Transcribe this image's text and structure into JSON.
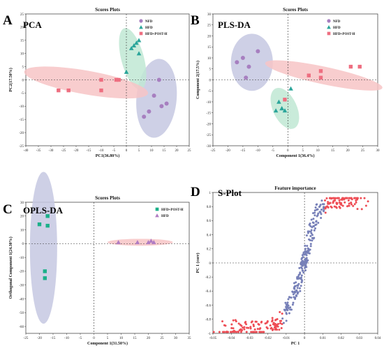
{
  "chart_data": [
    {
      "id": "A",
      "type": "scatter",
      "panel_label": "A",
      "method_label": "PCA",
      "title": "Scores Plots",
      "xlabel": "PC1(36.80%)",
      "ylabel": "PC2(17.50%)",
      "xlim": [
        -40,
        25
      ],
      "ylim": [
        -25,
        25
      ],
      "xticks": [
        -40,
        -35,
        -30,
        -25,
        -20,
        -15,
        -10,
        -5,
        0,
        5,
        10,
        15,
        20,
        25
      ],
      "yticks": [
        -25,
        -20,
        -15,
        -10,
        -5,
        0,
        5,
        10,
        15,
        20,
        25
      ],
      "legend": "top-right",
      "series": [
        {
          "name": "NFD",
          "marker": "circle",
          "color": "#a77fc0",
          "ellipse": "#c5c8e2",
          "x": [
            11,
            13,
            14,
            16,
            7,
            9
          ],
          "y": [
            -6,
            0,
            -10,
            -9,
            -14,
            -12
          ]
        },
        {
          "name": "HFD",
          "marker": "triangle",
          "color": "#2aa59a",
          "ellipse": "#bfe8d4",
          "x": [
            2,
            3,
            4,
            5,
            5,
            0
          ],
          "y": [
            12,
            13,
            14,
            15,
            10,
            3
          ]
        },
        {
          "name": "HFD+POST-H",
          "marker": "square",
          "color": "#ee6e80",
          "ellipse": "#f7c4c6",
          "x": [
            -27,
            -23,
            -10,
            -10,
            -4,
            -3
          ],
          "y": [
            -4,
            -4,
            0,
            -4,
            0,
            0
          ]
        }
      ],
      "ellipses": [
        {
          "series": "NFD",
          "cx": 12,
          "cy": -7,
          "rx": 8,
          "ry": 15,
          "angle": -5
        },
        {
          "series": "HFD",
          "cx": 2.5,
          "cy": 8,
          "rx": 4.5,
          "ry": 12,
          "angle": 15
        },
        {
          "series": "HFD+POST-H",
          "cx": -16,
          "cy": -1,
          "rx": 25,
          "ry": 4.5,
          "angle": -10
        }
      ]
    },
    {
      "id": "B",
      "type": "scatter",
      "panel_label": "B",
      "method_label": "PLS-DA",
      "title": "Scores Plots",
      "xlabel": "Component 1(36.4%)",
      "ylabel": "Component 2(17.5%)",
      "xlim": [
        -25,
        30
      ],
      "ylim": [
        -30,
        30
      ],
      "xticks": [
        -25,
        -20,
        -15,
        -10,
        -5,
        0,
        5,
        10,
        15,
        20,
        25,
        30
      ],
      "yticks": [
        -30,
        -25,
        -20,
        -15,
        -10,
        -5,
        0,
        5,
        10,
        15,
        20,
        25,
        30
      ],
      "legend": "top-right",
      "series": [
        {
          "name": "NFD",
          "marker": "circle",
          "color": "#a77fc0",
          "ellipse": "#c5c8e2",
          "x": [
            -17,
            -15,
            -13,
            -10,
            -14
          ],
          "y": [
            8,
            10,
            6,
            13,
            1
          ]
        },
        {
          "name": "HFD",
          "marker": "triangle",
          "color": "#2aa59a",
          "ellipse": "#bfe8d4",
          "x": [
            -3,
            -2,
            -1,
            1,
            -4,
            -2
          ],
          "y": [
            -10,
            -13,
            -14,
            -4,
            -14,
            -13
          ]
        },
        {
          "name": "HFD+POST-H",
          "marker": "square",
          "color": "#ee6e80",
          "ellipse": "#f7c4c6",
          "x": [
            7,
            11,
            11,
            21,
            24,
            -1
          ],
          "y": [
            2,
            1,
            4,
            6,
            6,
            -9
          ]
        }
      ],
      "ellipses": [
        {
          "series": "NFD",
          "cx": -12,
          "cy": 8,
          "rx": 7,
          "ry": 13,
          "angle": 0
        },
        {
          "series": "HFD",
          "cx": -1,
          "cy": -13,
          "rx": 4,
          "ry": 10,
          "angle": 25
        },
        {
          "series": "HFD+POST-H",
          "cx": 12,
          "cy": 2,
          "rx": 20,
          "ry": 4,
          "angle": -12
        }
      ]
    },
    {
      "id": "C",
      "type": "scatter",
      "panel_label": "C",
      "method_label": "OPLS-DA",
      "title": "Scores Plots",
      "xlabel": "Component 1(31.50%)",
      "ylabel": "Orthogonal Component 1(24.30%)",
      "xlim": [
        -25,
        35
      ],
      "ylim": [
        -65,
        30
      ],
      "xticks": [
        -25,
        -20,
        -15,
        -10,
        -5,
        0,
        5,
        10,
        15,
        20,
        25,
        30,
        35
      ],
      "yticks": [
        -60,
        -50,
        -40,
        -30,
        -20,
        -10,
        0,
        10,
        20,
        30
      ],
      "legend": "top-right",
      "series": [
        {
          "name": "HFD+POST-H",
          "marker": "square",
          "color": "#1bb089",
          "ellipse": "#c5c8e2",
          "x": [
            -20,
            -17,
            -17,
            -18,
            -18
          ],
          "y": [
            14,
            20,
            13,
            -20,
            -25
          ]
        },
        {
          "name": "HFD",
          "marker": "triangle",
          "color": "#b07cc3",
          "ellipse": "#f7c4c6",
          "x": [
            9,
            16,
            20,
            21,
            22
          ],
          "y": [
            1,
            1,
            1,
            2,
            1
          ]
        }
      ],
      "ellipses": [
        {
          "series": "HFD+POST-H",
          "cx": -18.5,
          "cy": -3,
          "rx": 5,
          "ry": 55,
          "angle": 0
        },
        {
          "series": "HFD",
          "cx": 17,
          "cy": 1,
          "rx": 12,
          "ry": 2.5,
          "angle": 0
        }
      ]
    },
    {
      "id": "D",
      "type": "scatter",
      "panel_label": "D",
      "method_label": "S-Plot",
      "title": "Feature importance",
      "xlabel": "PC 1",
      "ylabel": "PC 1 (corr)",
      "xlim": [
        -0.05,
        0.04
      ],
      "ylim": [
        -1,
        1
      ],
      "xticks": [
        -0.05,
        -0.04,
        -0.03,
        -0.02,
        -0.01,
        0,
        0.01,
        0.02,
        0.03,
        0.04
      ],
      "xtick_labels": [
        "-0.05",
        "-0.04",
        "-0.03",
        "-0.02",
        "-0.01",
        "0",
        "0.01",
        "0.02",
        "0.03",
        "0.04"
      ],
      "yticks": [
        -1,
        -0.8,
        -0.6,
        -0.4,
        -0.2,
        0,
        0.2,
        0.4,
        0.6,
        0.8,
        1
      ],
      "ytick_labels": [
        "-1",
        "-0.8",
        "-0.6",
        "-0.4",
        "-0.2",
        "0",
        "0.2",
        "0.4",
        "0.6",
        "0.8",
        "1"
      ],
      "colors": {
        "significant": "#ee4d55",
        "other": "#7780b8"
      },
      "generated_points": 420
    }
  ]
}
